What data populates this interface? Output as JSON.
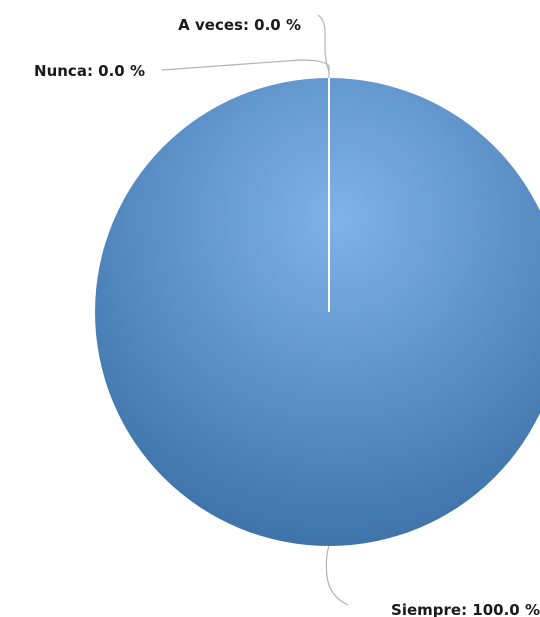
{
  "chart_data": {
    "type": "pie",
    "categories": [
      "A veces",
      "Nunca",
      "Siempre"
    ],
    "values": [
      0.0,
      0.0,
      100.0
    ],
    "labels": [
      "A veces: 0.0 %",
      "Nunca: 0.0 %",
      "Siempre: 100.0 %"
    ],
    "colors": {
      "slice_center": "#7fb3e8",
      "slice_edge": "#3a6fa6",
      "slice_border": "#ffffff",
      "leader_line": "#b3b3b3",
      "label_text": "#1a1a1a"
    },
    "legend": "none",
    "title": ""
  }
}
